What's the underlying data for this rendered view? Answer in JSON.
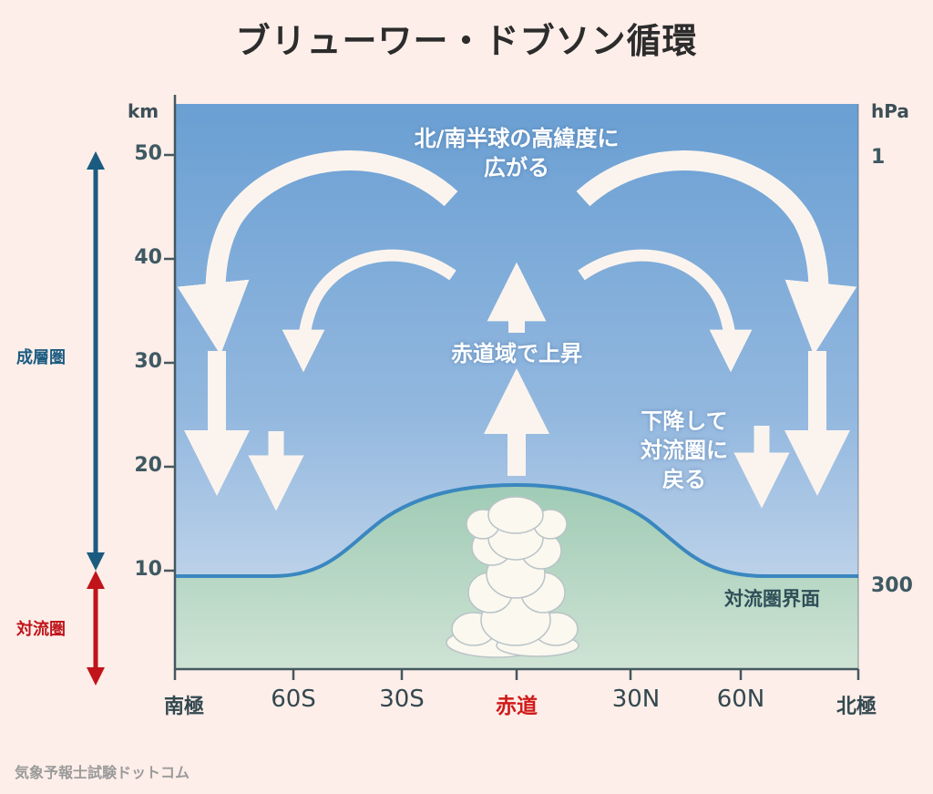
{
  "title": "ブリューワー・ドブソン循環",
  "axis": {
    "left_unit": "km",
    "right_unit": "hPa",
    "km_ticks": [
      "50",
      "40",
      "30",
      "20",
      "10"
    ],
    "hpa_ticks": [
      "1",
      "300"
    ]
  },
  "layers": {
    "stratosphere": "成層圏",
    "troposphere": "対流圏"
  },
  "x_labels": [
    "南極",
    "60S",
    "30S",
    "赤道",
    "30N",
    "60N",
    "北極"
  ],
  "annotations": {
    "spread_line1": "北/南半球の高緯度に",
    "spread_line2": "広がる",
    "rise": "赤道域で上昇",
    "descend_line1": "下降して",
    "descend_line2": "対流圏に",
    "descend_line3": "戻る",
    "tropopause": "対流圏界面"
  },
  "footer": "気象予報士試験ドットコム",
  "colors": {
    "stratosphere_label": "#1b5b80",
    "troposphere_label": "#c0141a",
    "equator_label": "#d11a1a",
    "sky_top": "#6fa3d6",
    "sky_bottom": "#c9d9ec",
    "tropo_fill": "#a9d2bd",
    "tropopause_line": "#3a87c0"
  }
}
